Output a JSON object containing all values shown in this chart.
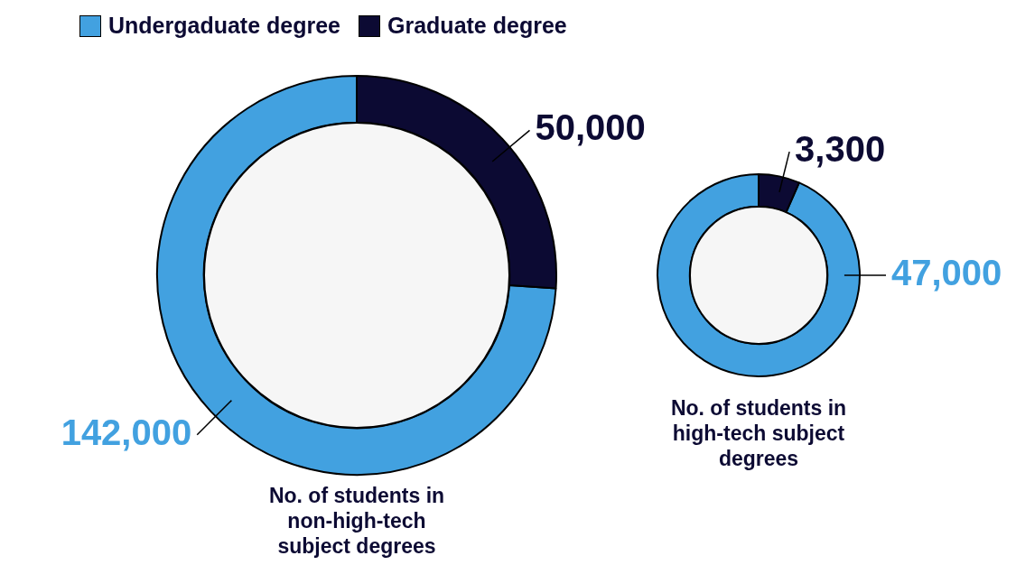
{
  "chart_data": [
    {
      "type": "donut",
      "title": "No. of students in non-high-tech subject degrees",
      "categories": [
        "Undergaduate degree",
        "Graduate degree"
      ],
      "values": [
        142000,
        50000
      ],
      "value_labels": [
        "142,000",
        "50,000"
      ],
      "colors": [
        "#42a1e0",
        "#0c0a33"
      ],
      "legend": "top left"
    },
    {
      "type": "donut",
      "title": "No. of students in high-tech subject degrees",
      "categories": [
        null,
        null
      ],
      "values": [
        47000,
        3300
      ],
      "value_labels": [
        "47,000",
        "3,300"
      ],
      "colors": [
        "#42a1e0",
        "#0c0a33"
      ]
    }
  ]
}
